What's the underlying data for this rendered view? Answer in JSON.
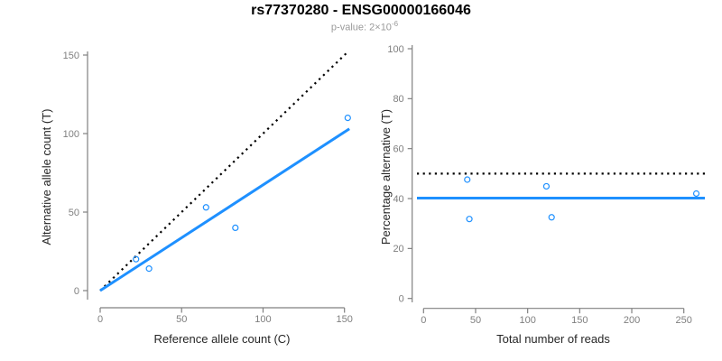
{
  "title": "rs77370280 - ENSG00000166046",
  "subtitle": {
    "prefix": "p-value: ",
    "mantissa": "2",
    "multiply": "×",
    "base": "10",
    "exponent": "-6"
  },
  "colors": {
    "accent_blue": "#1E90FF",
    "line_black": "#000000",
    "axis_gray": "#808080",
    "tick_label_gray": "#7f7f7f",
    "axis_title_dark": "#262626",
    "subtitle_gray": "#9a9a9a"
  },
  "chart_data": [
    {
      "type": "scatter",
      "name": "alt-vs-ref-counts",
      "xlabel": "Reference allele count (C)",
      "ylabel": "Alternative allele count (T)",
      "xlim": [
        0,
        155
      ],
      "ylim": [
        0,
        153
      ],
      "xticks": [
        0,
        50,
        100,
        150
      ],
      "yticks": [
        0,
        50,
        100,
        150
      ],
      "grid": false,
      "points": [
        [
          22,
          20
        ],
        [
          30,
          14
        ],
        [
          65,
          53
        ],
        [
          83,
          40
        ],
        [
          152,
          110
        ]
      ],
      "lines": [
        {
          "name": "identity-line",
          "style": "dotted",
          "color": "#000000",
          "from": [
            0,
            0
          ],
          "to": [
            152,
            152
          ]
        },
        {
          "name": "fit-line",
          "style": "solid",
          "color": "#1E90FF",
          "from": [
            0,
            0
          ],
          "to": [
            153,
            103
          ]
        }
      ]
    },
    {
      "type": "scatter",
      "name": "percentage-vs-total-reads",
      "xlabel": "Total number of reads",
      "ylabel": "Percentage alternative (T)",
      "xlim": [
        0,
        268
      ],
      "ylim": [
        0,
        100
      ],
      "xticks": [
        0,
        50,
        100,
        150,
        200,
        250
      ],
      "yticks": [
        0,
        20,
        40,
        60,
        80,
        100
      ],
      "grid": false,
      "points": [
        [
          42,
          47.6
        ],
        [
          44,
          31.8
        ],
        [
          118,
          44.9
        ],
        [
          123,
          32.5
        ],
        [
          262,
          42.0
        ]
      ],
      "lines": [
        {
          "name": "null-50pct-line",
          "style": "dotted",
          "color": "#000000",
          "y": 50
        },
        {
          "name": "mean-pct-line",
          "style": "solid",
          "color": "#1E90FF",
          "y": 40.2
        }
      ]
    }
  ]
}
